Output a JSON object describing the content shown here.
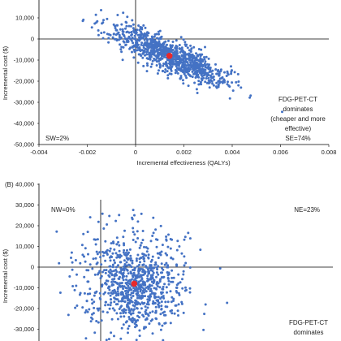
{
  "colors": {
    "point": "#4472C4",
    "mean": "#E8292B",
    "axis": "#000000",
    "tick": "#888888"
  },
  "chart_data": [
    {
      "type": "scatter",
      "panel_label": "",
      "xlabel": "Incremental effectiveness (QALYs)",
      "ylabel": "Incremental cost ($)",
      "xlim": [
        -0.004,
        0.008
      ],
      "ylim": [
        -50000,
        20000
      ],
      "x_ticks": [
        "-0.004",
        "-0.002",
        "0",
        "0.002",
        "0.004",
        "0.006",
        "0.008"
      ],
      "y_ticks": [
        "20,000",
        "10,000",
        "0",
        "-10,000",
        "-20,000",
        "-30,000",
        "-40,000",
        "-50,000"
      ],
      "quadrants": {
        "nw": "",
        "ne": "",
        "sw": "SW=2%",
        "se": "SE=74%"
      },
      "annotation": [
        "FDG-PET-CT",
        "dominates",
        "(cheaper and more",
        "effective)"
      ],
      "mean_point": {
        "x": 0.0014,
        "y": -8000
      },
      "cloud": {
        "n": 1000,
        "center_x": 0.0014,
        "center_y": -8000,
        "slope": -5000000,
        "sd_x": 0.00115,
        "sd_resid": 3800
      }
    },
    {
      "type": "scatter",
      "panel_label": "(B)",
      "xlabel": "",
      "ylabel": "Incremental cost ($)",
      "y_ticks": [
        "40,000",
        "30,000",
        "20,000",
        "10,000",
        "0",
        "-10,000",
        "-20,000",
        "-30,000"
      ],
      "quadrants": {
        "nw": "NW=0%",
        "ne": "NE=23%"
      },
      "annotation": [
        "FDG-PET-CT",
        "dominates"
      ],
      "mean_point": {
        "x": 0.0014,
        "y": -8000
      },
      "cloud": {
        "n": 900,
        "center_x": 0.0014,
        "center_y": -8000,
        "slope": 0,
        "sd_x": 0.0011,
        "sd_resid": 12000
      }
    }
  ]
}
